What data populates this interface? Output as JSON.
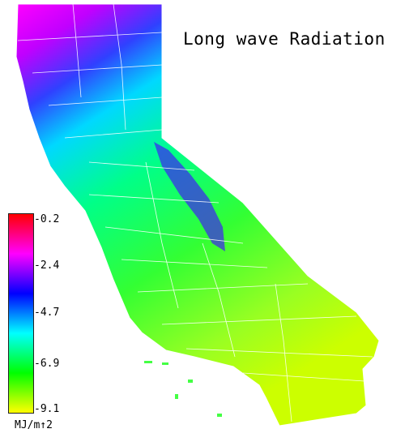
{
  "title": "Long wave Radiation",
  "legend": {
    "ticks": [
      "-0.2",
      "-2.4",
      "-4.7",
      "-6.9",
      "-9.1"
    ],
    "units": "MJ/m↑2",
    "min": -9.1,
    "max": -0.2,
    "colors": [
      "#ff0000",
      "#ff00ff",
      "#0000ff",
      "#00ffff",
      "#00ff00",
      "#ffff00"
    ]
  }
}
